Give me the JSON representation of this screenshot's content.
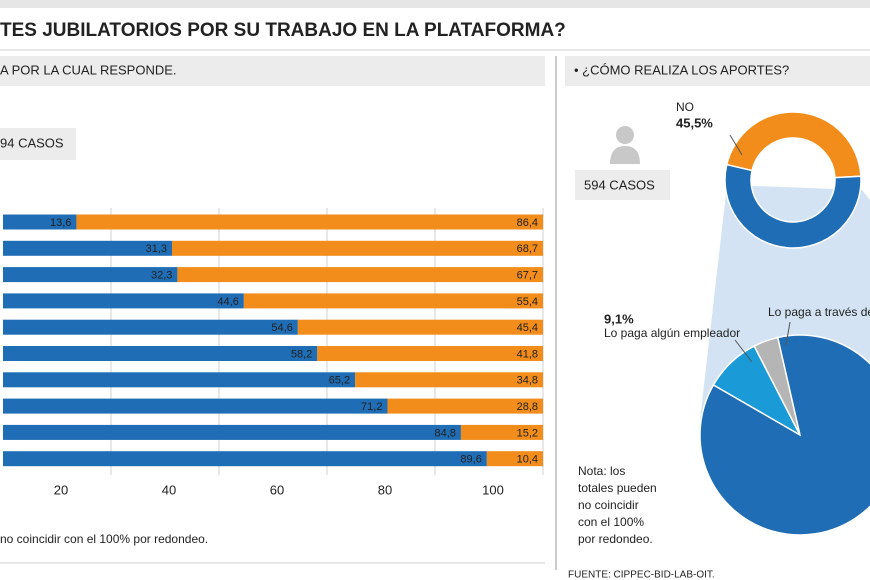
{
  "title": "TES JUBILATORIOS POR SU TRABAJO EN LA PLATAFORMA?",
  "left_panel": {
    "subtitle": "A POR LA CUAL RESPONDE.",
    "cases": "94 CASOS",
    "note": "no coincidir con el 100% por redondeo."
  },
  "right_panel": {
    "subtitle": "• ¿CÓMO REALIZA LOS APORTES?",
    "cases": "594 CASOS",
    "note": [
      "Nota: los",
      "totales pueden",
      "no coincidir",
      "con el 100%",
      "por redondeo."
    ],
    "source": "FUENTE: CIPPEC-BID-LAB-OIT."
  },
  "chart_data": [
    {
      "type": "bar",
      "orientation": "horizontal",
      "stacked": true,
      "categories": [
        null,
        null,
        null,
        null,
        null,
        null,
        null,
        null,
        null,
        null
      ],
      "series": [
        {
          "color": "#1f6db5",
          "values": [
            13.6,
            31.3,
            32.3,
            44.6,
            54.6,
            58.2,
            65.2,
            71.2,
            84.8,
            89.6
          ],
          "value_labels": [
            "13,6",
            "31,3",
            "32,3",
            "44,6",
            "54,6",
            "58,2",
            "65,2",
            "71,2",
            "84,8",
            "89,6"
          ]
        },
        {
          "color": "#f28c1a",
          "values": [
            86.4,
            68.7,
            67.7,
            55.4,
            45.4,
            41.8,
            34.8,
            28.8,
            15.2,
            10.4
          ],
          "value_labels": [
            "86,4",
            "68,7",
            "67,7",
            "55,4",
            "45,4",
            "41,8",
            "34,8",
            "28,8",
            "15,2",
            "10,4"
          ]
        }
      ],
      "xlim": [
        0,
        100
      ],
      "xticks": [
        20,
        40,
        60,
        80,
        100
      ],
      "grid": true
    },
    {
      "type": "pie",
      "donut": true,
      "categories": [
        "NO",
        null
      ],
      "values": [
        45.5,
        54.5
      ],
      "value_labels": [
        "45,5%",
        null
      ],
      "colors": [
        "#f28c1a",
        "#1f6db5"
      ]
    },
    {
      "type": "pie",
      "donut": false,
      "categories": [
        "Lo paga algún empleador",
        "Lo paga  a través de",
        null
      ],
      "values": [
        9.1,
        4,
        86.9
      ],
      "value_labels": [
        "9,1%",
        null,
        null
      ],
      "colors": [
        "#1a9ad6",
        "#b5b5b5",
        "#1f6db5"
      ]
    }
  ]
}
